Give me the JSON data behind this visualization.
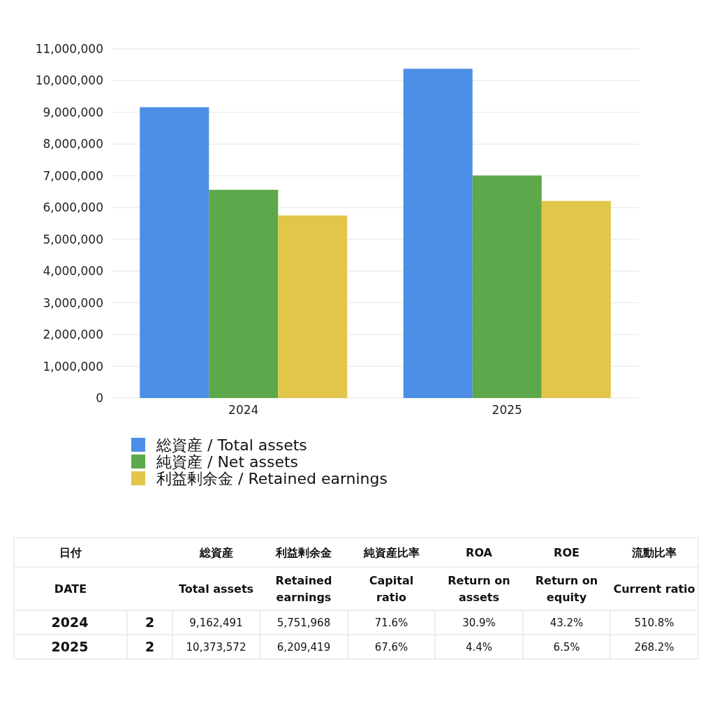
{
  "chart_data": [
    {
      "type": "bar",
      "categories": [
        "2024",
        "2025"
      ],
      "series": [
        {
          "name": "総資産 / Total assets",
          "color": "#4d8ee6",
          "values": [
            9162491,
            10373572
          ]
        },
        {
          "name": "純資産 / Net assets",
          "color": "#5ca84a",
          "values": [
            6560000,
            7010000
          ]
        },
        {
          "name": "利益剰余金 / Retained earnings",
          "color": "#e2c64a",
          "values": [
            5751968,
            6209419
          ]
        }
      ],
      "ylim": [
        0,
        11000000
      ],
      "yticks": [
        0,
        {
          "value": 1000000,
          "label": "1,000,000"
        },
        {
          "value": 2000000,
          "label": "2,000,000"
        },
        {
          "value": 3000000,
          "label": "3,000,000"
        },
        {
          "value": 4000000,
          "label": "4,000,000"
        },
        {
          "value": 5000000,
          "label": "5,000,000"
        },
        {
          "value": 6000000,
          "label": "6,000,000"
        },
        {
          "value": 7000000,
          "label": "7,000,000"
        },
        {
          "value": 8000000,
          "label": "8,000,000"
        },
        {
          "value": 9000000,
          "label": "9,000,000"
        },
        {
          "value": 10000000,
          "label": "10,000,000"
        },
        {
          "value": 11000000,
          "label": "11,000,000"
        }
      ],
      "grid": "y",
      "legend": "bottom"
    },
    {
      "type": "other",
      "annotations": [
        "日付",
        null,
        "総資産",
        "利益剰余金",
        "純資産比率",
        "ROA",
        "ROE",
        "流動比率",
        "DATE",
        null,
        "Total assets",
        "Retained earnings",
        "Capital ratio",
        "Return on assets",
        "Return on equity",
        "Current ratio",
        "2024",
        "2",
        "9,162,491",
        "5,751,968",
        "71.6%",
        "30.9%",
        "43.2%",
        "510.8%",
        "2025",
        "2",
        "10,373,572",
        "6,209,419",
        "67.6%",
        "4.4%",
        "6.5%",
        "268.2%"
      ]
    }
  ]
}
